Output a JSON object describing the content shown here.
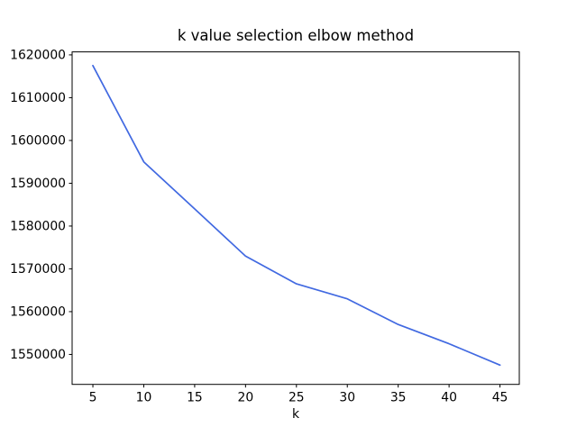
{
  "chart_data": {
    "type": "line",
    "title": "k value selection elbow method",
    "xlabel": "k",
    "ylabel": "",
    "x": [
      5,
      10,
      15,
      20,
      25,
      30,
      35,
      40,
      45
    ],
    "y": [
      1617500,
      1595000,
      1584000,
      1573000,
      1566500,
      1563000,
      1557000,
      1552500,
      1547500
    ],
    "xticks": [
      5,
      10,
      15,
      20,
      25,
      30,
      35,
      40,
      45
    ],
    "yticks": [
      1550000,
      1560000,
      1570000,
      1580000,
      1590000,
      1600000,
      1610000,
      1620000
    ],
    "xlim": [
      2.96,
      46.9
    ],
    "ylim": [
      1543000,
      1620700
    ],
    "grid": false,
    "line_color": "#4169e1",
    "axis_color": "#000000",
    "background_color": "#ffffff"
  }
}
